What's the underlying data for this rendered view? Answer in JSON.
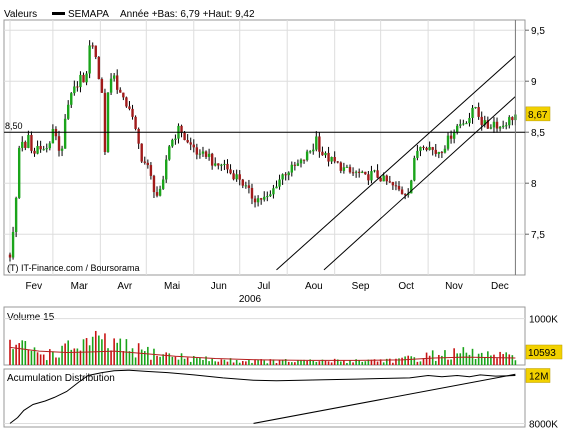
{
  "header": {
    "valeurs_label": "Valeurs",
    "series_name": "SEMAPA",
    "stats": "Année +Bas: 6,79 +Haut: 9,42"
  },
  "colors": {
    "up": "#1aa41a",
    "down": "#a11a1a",
    "line": "#000000",
    "grid": "#dddddd",
    "frame": "#999999",
    "highlight": "#f2d100",
    "volume_up": "#1aa41a",
    "volume_down": "#c81414",
    "volume_avg": "#b41e1e"
  },
  "chart_data": [
    {
      "id": "price",
      "type": "candlestick",
      "title": "",
      "credit": "(T) IT-Finance.com / Boursorama",
      "year_label": "2006",
      "x_months": [
        "Fev",
        "Mar",
        "Avr",
        "Mai",
        "Jun",
        "Jul",
        "Aou",
        "Sep",
        "Oct",
        "Nov",
        "Dec"
      ],
      "y_ticks": [
        "7,5",
        "8",
        "8,5",
        "9",
        "9,5"
      ],
      "y_range": [
        7.1,
        9.6
      ],
      "reference_level": 8.5,
      "reference_label": "8,50",
      "last_value": 8.67,
      "last_label": "8,67",
      "trend_channel": {
        "upper": [
          [
            "Jul 25",
            7.15
          ],
          [
            "Dec 28",
            9.25
          ]
        ],
        "lower": [
          [
            "Aug 25",
            7.15
          ],
          [
            "Dec 28",
            8.85
          ]
        ]
      },
      "path": [
        [
          "Feb 01",
          7.3
        ],
        [
          "Feb 04",
          7.6
        ],
        [
          "Feb 06",
          8.1
        ],
        [
          "Feb 08",
          8.6
        ],
        [
          "Feb 10",
          8.25
        ],
        [
          "Feb 13",
          8.45
        ],
        [
          "Feb 16",
          8.25
        ],
        [
          "Feb 20",
          8.4
        ],
        [
          "Feb 24",
          8.3
        ],
        [
          "Feb 27",
          8.4
        ],
        [
          "Mar 02",
          8.55
        ],
        [
          "Mar 06",
          8.25
        ],
        [
          "Mar 10",
          8.7
        ],
        [
          "Mar 13",
          8.85
        ],
        [
          "Mar 16",
          8.95
        ],
        [
          "Mar 19",
          9.05
        ],
        [
          "Mar 22",
          8.9
        ],
        [
          "Mar 24",
          9.3
        ],
        [
          "Mar 27",
          9.38
        ],
        [
          "Mar 29",
          9.2
        ],
        [
          "Apr 02",
          8.9
        ],
        [
          "Apr 04",
          8.3
        ],
        [
          "Apr 06",
          8.9
        ],
        [
          "Apr 09",
          9.1
        ],
        [
          "Apr 12",
          8.95
        ],
        [
          "Apr 16",
          8.8
        ],
        [
          "Apr 20",
          8.75
        ],
        [
          "Apr 24",
          8.5
        ],
        [
          "Apr 28",
          8.25
        ],
        [
          "May 02",
          8.15
        ],
        [
          "May 06",
          7.95
        ],
        [
          "May 09",
          7.85
        ],
        [
          "May 12",
          8.0
        ],
        [
          "May 15",
          8.35
        ],
        [
          "May 19",
          8.45
        ],
        [
          "May 23",
          8.55
        ],
        [
          "May 27",
          8.4
        ],
        [
          "Jun 01",
          8.35
        ],
        [
          "Jun 05",
          8.25
        ],
        [
          "Jun 10",
          8.3
        ],
        [
          "Jun 15",
          8.15
        ],
        [
          "Jun 20",
          8.2
        ],
        [
          "Jun 25",
          8.1
        ],
        [
          "Jul 01",
          8.05
        ],
        [
          "Jul 05",
          7.95
        ],
        [
          "Jul 10",
          7.85
        ],
        [
          "Jul 15",
          7.85
        ],
        [
          "Jul 20",
          7.85
        ],
        [
          "Jul 25",
          8.0
        ],
        [
          "Jul 30",
          8.1
        ],
        [
          "Aug 05",
          8.15
        ],
        [
          "Aug 10",
          8.2
        ],
        [
          "Aug 15",
          8.3
        ],
        [
          "Aug 18",
          8.35
        ],
        [
          "Aug 20",
          8.45
        ],
        [
          "Aug 23",
          8.3
        ],
        [
          "Aug 27",
          8.25
        ],
        [
          "Sep 01",
          8.2
        ],
        [
          "Sep 06",
          8.15
        ],
        [
          "Sep 11",
          8.1
        ],
        [
          "Sep 16",
          8.1
        ],
        [
          "Sep 21",
          8.05
        ],
        [
          "Sep 26",
          8.1
        ],
        [
          "Oct 01",
          8.05
        ],
        [
          "Oct 06",
          8.0
        ],
        [
          "Oct 11",
          7.95
        ],
        [
          "Oct 16",
          7.9
        ],
        [
          "Oct 20",
          7.95
        ],
        [
          "Oct 24",
          8.3
        ],
        [
          "Oct 28",
          8.4
        ],
        [
          "Nov 02",
          8.35
        ],
        [
          "Nov 06",
          8.3
        ],
        [
          "Nov 11",
          8.35
        ],
        [
          "Nov 15",
          8.45
        ],
        [
          "Nov 19",
          8.55
        ],
        [
          "Nov 24",
          8.6
        ],
        [
          "Nov 28",
          8.65
        ],
        [
          "Dec 02",
          8.75
        ],
        [
          "Dec 06",
          8.6
        ],
        [
          "Dec 10",
          8.55
        ],
        [
          "Dec 14",
          8.6
        ],
        [
          "Dec 18",
          8.55
        ],
        [
          "Dec 22",
          8.6
        ],
        [
          "Dec 28",
          8.67
        ]
      ]
    },
    {
      "id": "volume",
      "type": "bar",
      "title": "Volume 15",
      "y_ticks": [
        "1000K"
      ],
      "y_range": [
        0,
        1250
      ],
      "last_value": 10593,
      "last_label": "10593",
      "profile": [
        [
          "Feb 01",
          520
        ],
        [
          "Feb 10",
          420
        ],
        [
          "Feb 24",
          260
        ],
        [
          "Mar 10",
          380
        ],
        [
          "Mar 24",
          560
        ],
        [
          "Apr 05",
          520
        ],
        [
          "Apr 20",
          380
        ],
        [
          "May 05",
          300
        ],
        [
          "May 25",
          190
        ],
        [
          "Jun 15",
          120
        ],
        [
          "Jul 15",
          100
        ],
        [
          "Aug 15",
          90
        ],
        [
          "Sep 15",
          110
        ],
        [
          "Oct 15",
          130
        ],
        [
          "Nov 05",
          240
        ],
        [
          "Nov 25",
          280
        ],
        [
          "Dec 28",
          180
        ]
      ],
      "moving_average": [
        [
          "Feb 01",
          380
        ],
        [
          "Feb 20",
          300
        ],
        [
          "Mar 10",
          270
        ],
        [
          "Mar 25",
          280
        ],
        [
          "Apr 10",
          300
        ],
        [
          "Apr 28",
          250
        ],
        [
          "May 20",
          190
        ],
        [
          "Jun 15",
          140
        ],
        [
          "Jul 15",
          110
        ],
        [
          "Aug 15",
          100
        ],
        [
          "Sep 15",
          100
        ],
        [
          "Oct 15",
          110
        ],
        [
          "Nov 05",
          150
        ],
        [
          "Nov 25",
          170
        ],
        [
          "Dec 28",
          150
        ]
      ]
    },
    {
      "id": "accumulation",
      "type": "line",
      "title": "Acumulation Distribution",
      "y_ticks": [
        "8000K"
      ],
      "y_range": [
        7700,
        12600
      ],
      "last_label": "12M",
      "series": [
        {
          "values": [
            [
              "Feb 01",
              8000
            ],
            [
              "Feb 06",
              8500
            ],
            [
              "Feb 10",
              9100
            ],
            [
              "Feb 16",
              9600
            ],
            [
              "Feb 24",
              9900
            ],
            [
              "Mar 02",
              10200
            ],
            [
              "Mar 10",
              10700
            ],
            [
              "Mar 18",
              11500
            ],
            [
              "Mar 24",
              12050
            ],
            [
              "Apr 02",
              12300
            ],
            [
              "Apr 10",
              12450
            ],
            [
              "Apr 20",
              12500
            ],
            [
              "May 01",
              12400
            ],
            [
              "May 15",
              12300
            ],
            [
              "Jun 01",
              12100
            ],
            [
              "Jun 20",
              11850
            ],
            [
              "Jul 10",
              11650
            ],
            [
              "Jul 25",
              11600
            ],
            [
              "Aug 10",
              11650
            ],
            [
              "Aug 25",
              11700
            ],
            [
              "Sep 15",
              11750
            ],
            [
              "Oct 01",
              11800
            ],
            [
              "Oct 20",
              11850
            ],
            [
              "Nov 01",
              12050
            ],
            [
              "Nov 10",
              11950
            ],
            [
              "Nov 20",
              12050
            ],
            [
              "Nov 28",
              11950
            ],
            [
              "Dec 05",
              12100
            ],
            [
              "Dec 15",
              12000
            ],
            [
              "Dec 28",
              12050
            ]
          ]
        },
        {
          "values": [
            [
              "Jul 10",
              8000
            ],
            [
              "Dec 28",
              12150
            ]
          ]
        }
      ]
    }
  ]
}
